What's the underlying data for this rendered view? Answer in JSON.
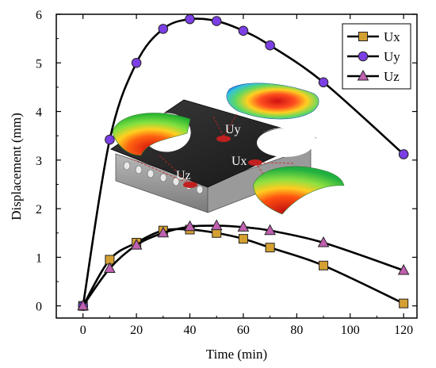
{
  "chart_data": {
    "type": "line",
    "xlabel": "Time (min)",
    "ylabel": "Displacement (mm)",
    "xlim": [
      -10,
      125
    ],
    "ylim": [
      -0.25,
      6
    ],
    "xticks": [
      "0",
      "20",
      "40",
      "60",
      "80",
      "100",
      "120"
    ],
    "yticks": [
      "0",
      "1",
      "2",
      "3",
      "4",
      "5",
      "6"
    ],
    "grid": false,
    "legend_position": "top-right",
    "series": [
      {
        "name": "Ux",
        "marker": "square",
        "color": "#d4a032",
        "x": [
          0,
          10,
          20,
          30,
          40,
          50,
          60,
          70,
          90,
          120
        ],
        "values": [
          0,
          0.95,
          1.3,
          1.55,
          1.57,
          1.5,
          1.38,
          1.2,
          0.83,
          0.05
        ]
      },
      {
        "name": "Uy",
        "marker": "circle",
        "color": "#7b3fe4",
        "x": [
          0,
          10,
          20,
          30,
          40,
          50,
          60,
          70,
          90,
          120
        ],
        "values": [
          0,
          3.42,
          5.0,
          5.7,
          5.9,
          5.86,
          5.66,
          5.36,
          4.6,
          3.12
        ]
      },
      {
        "name": "Uz",
        "marker": "triangle",
        "color": "#c060b0",
        "x": [
          0,
          10,
          20,
          30,
          40,
          50,
          60,
          70,
          90,
          120
        ],
        "values": [
          0,
          0.77,
          1.25,
          1.5,
          1.63,
          1.65,
          1.62,
          1.55,
          1.3,
          0.73
        ]
      }
    ],
    "inset_labels": [
      "Uy",
      "Ux",
      "Uz"
    ]
  }
}
